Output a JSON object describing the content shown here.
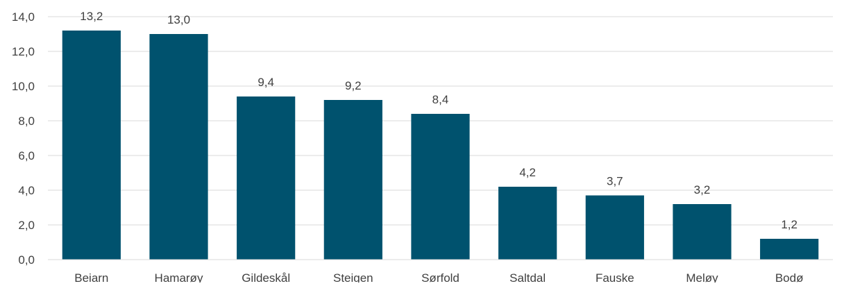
{
  "chart_data": {
    "type": "bar",
    "title": "",
    "xlabel": "",
    "ylabel": "",
    "categories": [
      "Beiarn",
      "Hamarøy",
      "Gildeskål",
      "Steigen",
      "Sørfold",
      "Saltdal",
      "Fauske",
      "Meløy",
      "Bodø"
    ],
    "values": [
      13.2,
      13.0,
      9.4,
      9.2,
      8.4,
      4.2,
      3.7,
      3.2,
      1.2
    ],
    "value_labels": [
      "13,2",
      "13,0",
      "9,4",
      "9,2",
      "8,4",
      "4,2",
      "3,7",
      "3,2",
      "1,2"
    ],
    "ylim": [
      0,
      14
    ],
    "yticks": [
      "0,0",
      "2,0",
      "4,0",
      "6,0",
      "8,0",
      "10,0",
      "12,0",
      "14,0"
    ],
    "grid": true,
    "legend": "none",
    "bar_color": "#00526e",
    "grid_color": "#d9d9d9"
  }
}
